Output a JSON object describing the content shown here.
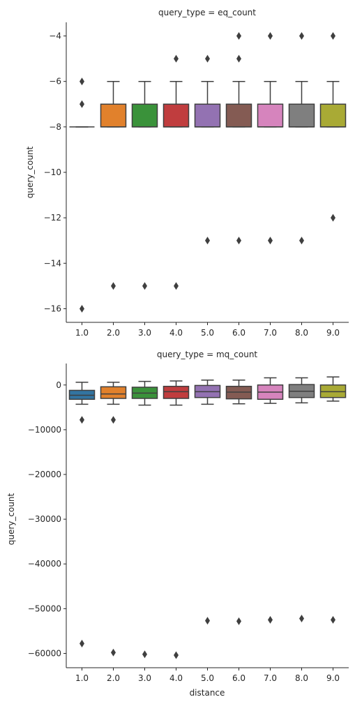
{
  "chart_data": [
    {
      "type": "box",
      "title": "query_type = eq_count",
      "xlabel": "",
      "ylabel": "query_count",
      "categories": [
        "1.0",
        "2.0",
        "3.0",
        "4.0",
        "5.0",
        "6.0",
        "7.0",
        "8.0",
        "9.0"
      ],
      "ylim": [
        -16.6,
        -3.4
      ],
      "yticks": [
        -16,
        -14,
        -12,
        -10,
        -8,
        -6,
        -4
      ],
      "ytick_labels": [
        "−16",
        "−14",
        "−12",
        "−10",
        "−8",
        "−6",
        "−4"
      ],
      "grid": false,
      "colors": [
        "#3274a1",
        "#e1812c",
        "#3a923a",
        "#c03d3e",
        "#9372b2",
        "#845b53",
        "#d684bd",
        "#7f7f7f",
        "#a9aa35"
      ],
      "boxes": [
        {
          "q1": -8,
          "median": -8,
          "q3": -8,
          "whislo": -8,
          "whishi": -8,
          "fliers": [
            -6,
            -7,
            -16
          ]
        },
        {
          "q1": -8,
          "median": -8,
          "q3": -7,
          "whislo": -8,
          "whishi": -6,
          "fliers": [
            -15
          ]
        },
        {
          "q1": -8,
          "median": -8,
          "q3": -7,
          "whislo": -8,
          "whishi": -6,
          "fliers": [
            -15
          ]
        },
        {
          "q1": -8,
          "median": -8,
          "q3": -7,
          "whislo": -8,
          "whishi": -6,
          "fliers": [
            -5,
            -15
          ]
        },
        {
          "q1": -8,
          "median": -8,
          "q3": -7,
          "whislo": -8,
          "whishi": -6,
          "fliers": [
            -5,
            -13
          ]
        },
        {
          "q1": -8,
          "median": -8,
          "q3": -7,
          "whislo": -8,
          "whishi": -6,
          "fliers": [
            -4,
            -5,
            -13
          ]
        },
        {
          "q1": -8,
          "median": -8,
          "q3": -7,
          "whislo": -8,
          "whishi": -6,
          "fliers": [
            -4,
            -13
          ]
        },
        {
          "q1": -8,
          "median": -8,
          "q3": -7,
          "whislo": -8,
          "whishi": -6,
          "fliers": [
            -4,
            -13
          ]
        },
        {
          "q1": -8,
          "median": -8,
          "q3": -7,
          "whislo": -8,
          "whishi": -6,
          "fliers": [
            -4,
            -12
          ]
        }
      ]
    },
    {
      "type": "box",
      "title": "query_type = mq_count",
      "xlabel": "distance",
      "ylabel": "query_count",
      "categories": [
        "1.0",
        "2.0",
        "3.0",
        "4.0",
        "5.0",
        "6.0",
        "7.0",
        "8.0",
        "9.0"
      ],
      "ylim": [
        -63200,
        4800
      ],
      "yticks": [
        -60000,
        -50000,
        -40000,
        -30000,
        -20000,
        -10000,
        0
      ],
      "ytick_labels": [
        "−60000",
        "−50000",
        "−40000",
        "−30000",
        "−20000",
        "−10000",
        "0"
      ],
      "grid": false,
      "colors": [
        "#3274a1",
        "#e1812c",
        "#3a923a",
        "#c03d3e",
        "#9372b2",
        "#845b53",
        "#d684bd",
        "#7f7f7f",
        "#a9aa35"
      ],
      "boxes": [
        {
          "q1": -3200,
          "median": -2300,
          "q3": -1200,
          "whislo": -4300,
          "whishi": 600,
          "fliers": [
            -7800,
            -57800
          ]
        },
        {
          "q1": -3000,
          "median": -2000,
          "q3": -400,
          "whislo": -4300,
          "whishi": 600,
          "fliers": [
            -7800,
            -59800
          ]
        },
        {
          "q1": -3000,
          "median": -1800,
          "q3": -500,
          "whislo": -4500,
          "whishi": 800,
          "fliers": [
            -60200
          ]
        },
        {
          "q1": -3000,
          "median": -1500,
          "q3": -300,
          "whislo": -4500,
          "whishi": 900,
          "fliers": [
            -60400
          ]
        },
        {
          "q1": -2800,
          "median": -1500,
          "q3": -100,
          "whislo": -4300,
          "whishi": 1100,
          "fliers": [
            -52700
          ]
        },
        {
          "q1": -3100,
          "median": -1600,
          "q3": -300,
          "whislo": -4200,
          "whishi": 1100,
          "fliers": [
            -52800
          ]
        },
        {
          "q1": -3200,
          "median": -1600,
          "q3": 0,
          "whislo": -4100,
          "whishi": 1600,
          "fliers": [
            -52500
          ]
        },
        {
          "q1": -2800,
          "median": -1400,
          "q3": 100,
          "whislo": -4000,
          "whishi": 1600,
          "fliers": [
            -52200
          ]
        },
        {
          "q1": -2800,
          "median": -1500,
          "q3": 0,
          "whislo": -3600,
          "whishi": 1800,
          "fliers": [
            -52500
          ]
        }
      ]
    }
  ]
}
